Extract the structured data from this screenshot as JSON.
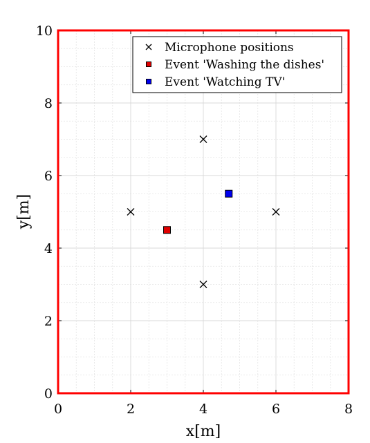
{
  "chart_data": {
    "type": "scatter",
    "xlabel": "x[m]",
    "ylabel": "y[m]",
    "xlim": [
      0,
      8
    ],
    "ylim": [
      0,
      10
    ],
    "xticks": [
      0,
      2,
      4,
      6,
      8
    ],
    "yticks": [
      0,
      2,
      4,
      6,
      8,
      10
    ],
    "xtick_labels": [
      "0",
      "2",
      "4",
      "6",
      "8"
    ],
    "ytick_labels": [
      "0",
      "2",
      "4",
      "6",
      "8",
      "10"
    ],
    "minor_grid_step": 0.5,
    "grid": true,
    "legend_position": "top-right",
    "frame_color": "#ff0000",
    "series": [
      {
        "name": "Microphone positions",
        "marker": "x",
        "color": "#000000",
        "points": [
          [
            2,
            5
          ],
          [
            4,
            7
          ],
          [
            4,
            3
          ],
          [
            6,
            5
          ]
        ]
      },
      {
        "name": "Event 'Washing the dishes'",
        "marker": "square",
        "color": "#e00000",
        "points": [
          [
            3,
            4.5
          ]
        ]
      },
      {
        "name": "Event 'Watching TV'",
        "marker": "square",
        "color": "#0000ee",
        "points": [
          [
            4.7,
            5.5
          ]
        ]
      }
    ]
  }
}
